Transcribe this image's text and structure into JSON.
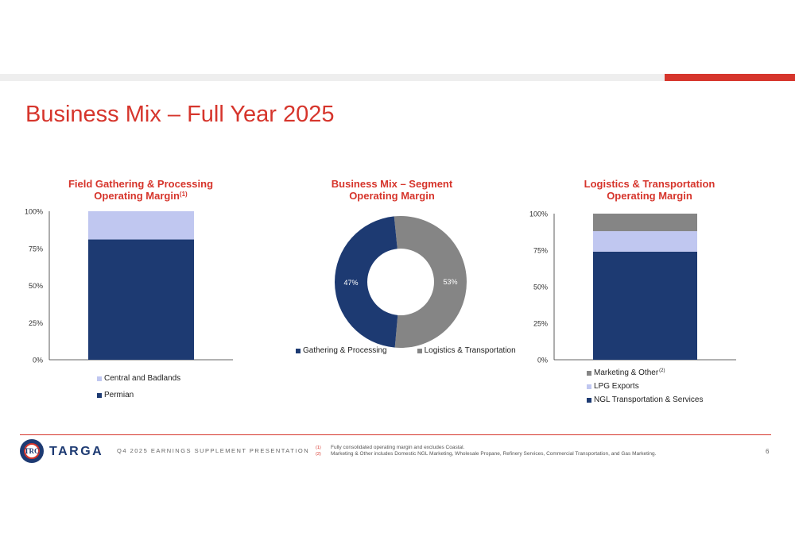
{
  "page": {
    "title": "Business Mix – Full Year 2025",
    "page_number": "6"
  },
  "colors": {
    "navy": "#1d3a72",
    "light_blue": "#c0c7f0",
    "grey": "#858585",
    "red": "#d6352c"
  },
  "chart_data": [
    {
      "type": "bar",
      "stacked": true,
      "title": "Field Gathering & Processing Operating Margin",
      "title_line1": "Field Gathering & Processing",
      "title_line2": "Operating Margin",
      "title_footnote": "(1)",
      "categories": [
        ""
      ],
      "ylim": [
        0,
        100
      ],
      "yticks": [
        "0%",
        "25%",
        "50%",
        "75%",
        "100%"
      ],
      "series": [
        {
          "name": "Permian",
          "values": [
            81
          ],
          "color": "#1d3a72"
        },
        {
          "name": "Central and Badlands",
          "values": [
            19
          ],
          "color": "#c0c7f0"
        }
      ],
      "legend": "bottom"
    },
    {
      "type": "pie",
      "donut": true,
      "title": "Business Mix – Segment Operating Margin",
      "title_line1": "Business Mix – Segment",
      "title_line2": "Operating Margin",
      "slices": [
        {
          "name": "Gathering & Processing",
          "value": 47,
          "label": "47%",
          "color": "#1d3a72"
        },
        {
          "name": "Logistics & Transportation",
          "value": 53,
          "label": "53%",
          "color": "#858585"
        }
      ],
      "legend": "bottom"
    },
    {
      "type": "bar",
      "stacked": true,
      "title": "Logistics & Transportation Operating Margin",
      "title_line1": "Logistics & Transportation",
      "title_line2": "Operating Margin",
      "categories": [
        ""
      ],
      "ylim": [
        0,
        100
      ],
      "yticks": [
        "0%",
        "25%",
        "50%",
        "75%",
        "100%"
      ],
      "series": [
        {
          "name": "NGL Transportation & Services",
          "values": [
            74
          ],
          "color": "#1d3a72"
        },
        {
          "name": "LPG Exports",
          "values": [
            14
          ],
          "color": "#c0c7f0"
        },
        {
          "name": "Marketing & Other",
          "footnote": "(2)",
          "values": [
            12
          ],
          "color": "#858585"
        }
      ],
      "legend": "bottom"
    }
  ],
  "footer": {
    "logo_text": "TARGA",
    "logo_monogram": "TRC",
    "presentation": "Q4 2025 EARNINGS SUPPLEMENT PRESENTATION",
    "footnotes": [
      {
        "num": "(1)",
        "text": "Fully consolidated operating margin and excludes Coastal."
      },
      {
        "num": "(2)",
        "text": "Marketing & Other includes Domestic NGL Marketing, Wholesale Propane, Refinery Services, Commercial Transportation, and Gas Marketing."
      }
    ]
  }
}
